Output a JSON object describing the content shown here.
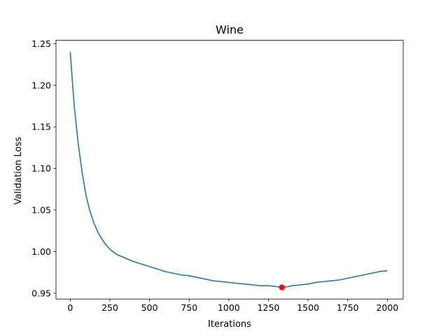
{
  "chart_data": {
    "type": "line",
    "title": "Wine",
    "xlabel": "Iterations",
    "ylabel": "Validation Loss",
    "xlim": [
      -90,
      2100
    ],
    "ylim": [
      0.943,
      1.254
    ],
    "xticks": [
      0,
      250,
      500,
      750,
      1000,
      1250,
      1500,
      1750,
      2000
    ],
    "yticks": [
      0.95,
      1.0,
      1.05,
      1.1,
      1.15,
      1.2,
      1.25
    ],
    "ytick_labels": [
      "0.95",
      "1.00",
      "1.05",
      "1.10",
      "1.15",
      "1.20",
      "1.25"
    ],
    "grid": false,
    "series": [
      {
        "color": "#1f77b4",
        "x": [
          0,
          25,
          50,
          75,
          100,
          125,
          150,
          175,
          200,
          225,
          250,
          275,
          300,
          350,
          400,
          450,
          500,
          550,
          600,
          650,
          700,
          750,
          800,
          850,
          900,
          950,
          1000,
          1050,
          1100,
          1150,
          1200,
          1250,
          1300,
          1335,
          1375,
          1400,
          1450,
          1500,
          1550,
          1600,
          1650,
          1700,
          1750,
          1800,
          1850,
          1900,
          1950,
          2000
        ],
        "y": [
          1.24,
          1.175,
          1.13,
          1.095,
          1.067,
          1.048,
          1.034,
          1.023,
          1.015,
          1.008,
          1.003,
          0.999,
          0.996,
          0.992,
          0.988,
          0.985,
          0.982,
          0.979,
          0.976,
          0.974,
          0.972,
          0.971,
          0.969,
          0.967,
          0.965,
          0.964,
          0.963,
          0.962,
          0.961,
          0.96,
          0.959,
          0.959,
          0.958,
          0.957,
          0.958,
          0.959,
          0.96,
          0.961,
          0.963,
          0.964,
          0.965,
          0.966,
          0.968,
          0.97,
          0.972,
          0.974,
          0.976,
          0.977
        ]
      }
    ],
    "highlight_point": {
      "x": 1335,
      "y": 0.957,
      "color": "#ff0000"
    }
  }
}
